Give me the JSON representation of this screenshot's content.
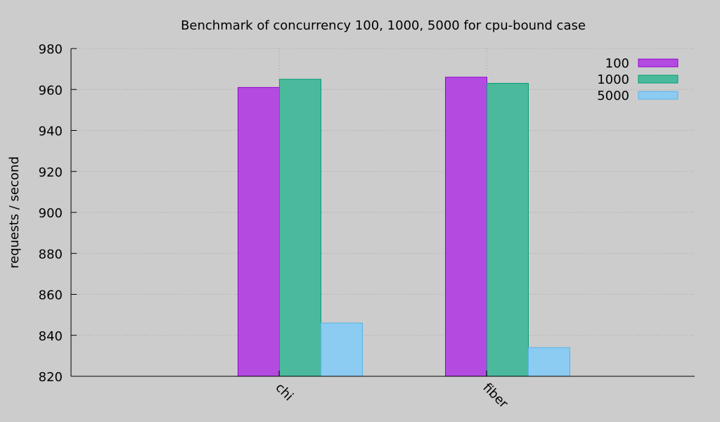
{
  "chart_data": {
    "type": "bar",
    "title": "Benchmark of concurrency 100, 1000, 5000 for cpu-bound case",
    "xlabel": "",
    "ylabel": "requests / second",
    "categories": [
      "chi",
      "fiber"
    ],
    "series": [
      {
        "name": "100",
        "values": [
          961,
          966
        ],
        "color": "#b44be1",
        "border": "#9400d3"
      },
      {
        "name": "1000",
        "values": [
          965,
          963
        ],
        "color": "#4bb99c",
        "border": "#009e73"
      },
      {
        "name": "5000",
        "values": [
          846,
          834
        ],
        "color": "#8ccbf2",
        "border": "#56b4e9"
      }
    ],
    "ylim": [
      820,
      980
    ],
    "yticks": [
      820,
      840,
      860,
      880,
      900,
      920,
      940,
      960,
      980
    ],
    "grid": true,
    "legend_position": "top-right"
  }
}
